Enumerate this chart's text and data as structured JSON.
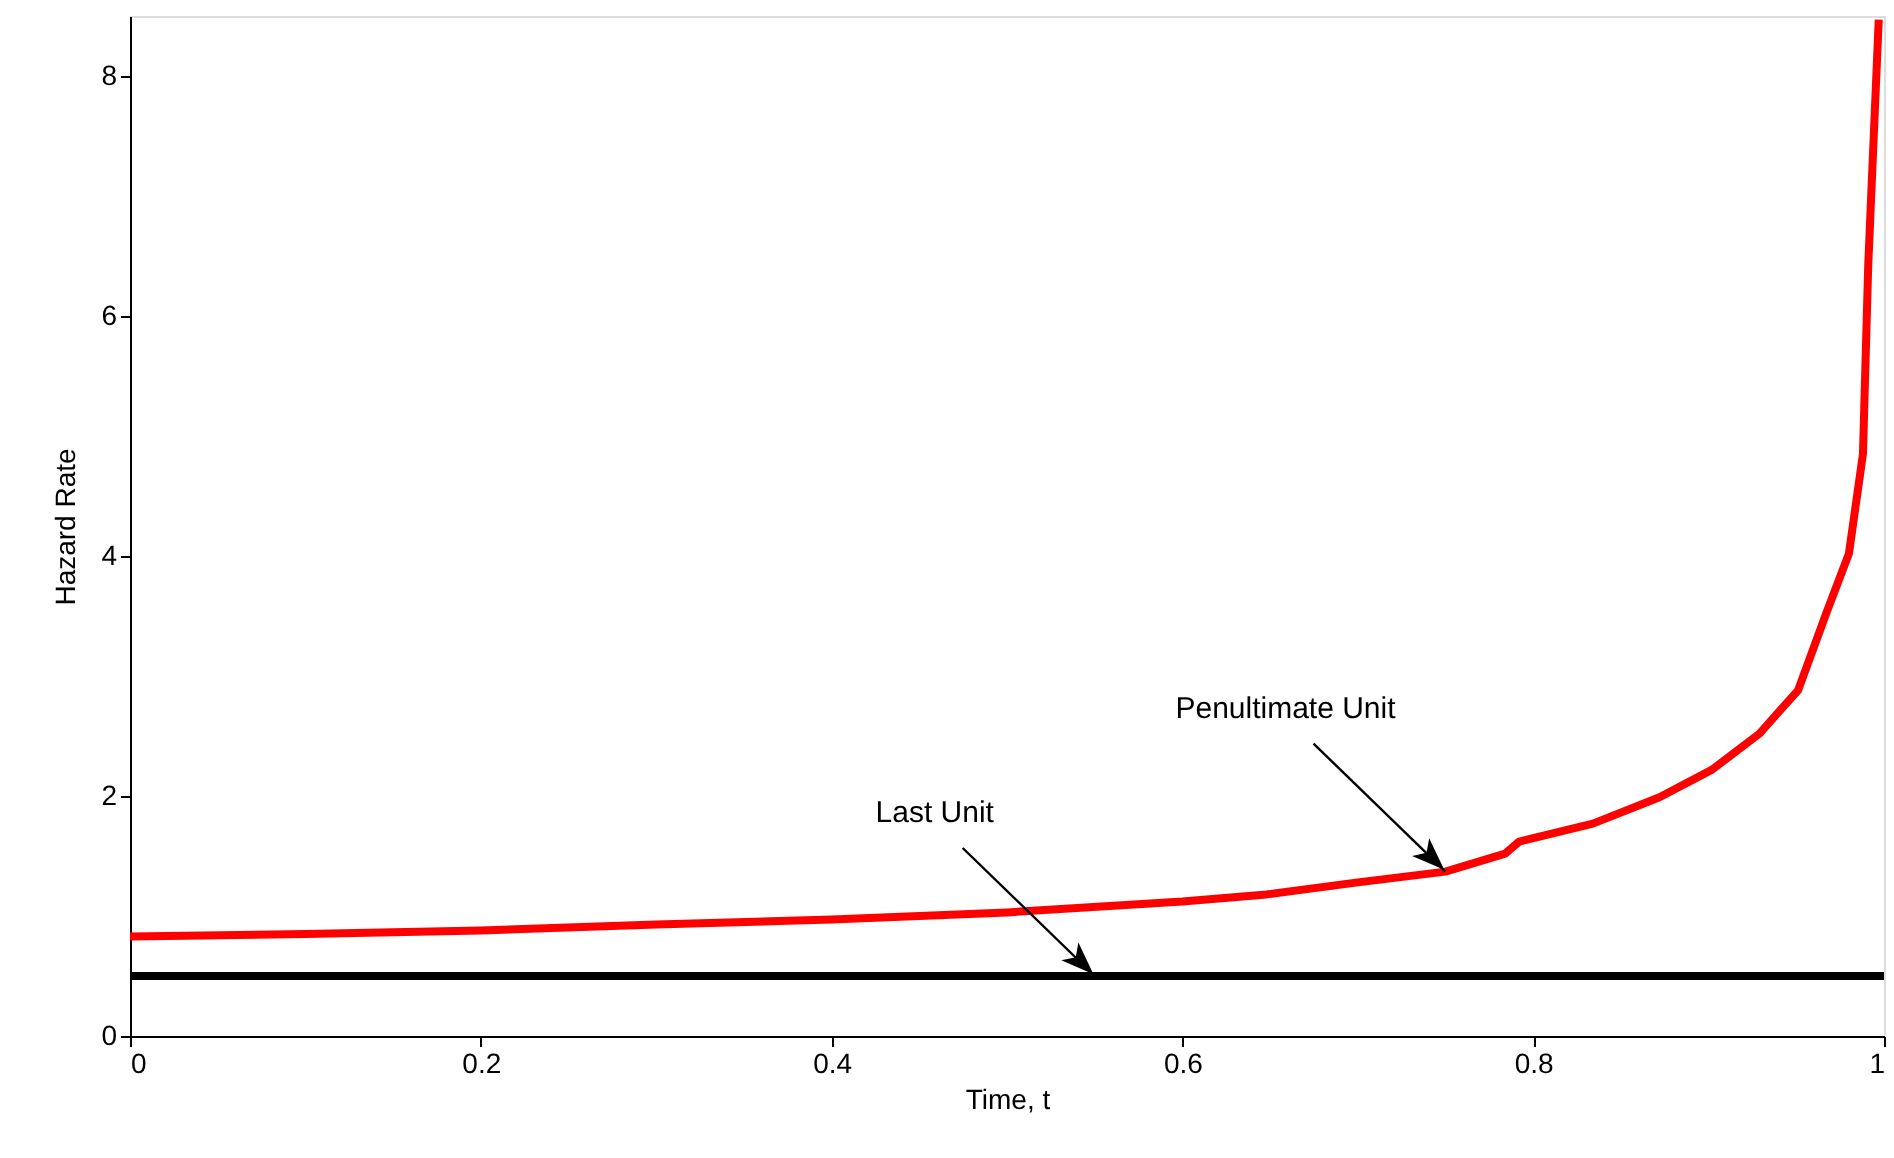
{
  "chart_data": {
    "type": "line",
    "xlabel": "Time, t",
    "ylabel": "Hazard Rate",
    "xlim": [
      0,
      1
    ],
    "ylim": [
      0,
      8.5
    ],
    "xticks": [
      0,
      0.2,
      0.4,
      0.6,
      0.8,
      1
    ],
    "yticks": [
      0,
      2,
      4,
      6,
      8
    ],
    "grid": false,
    "marker": "none",
    "line_style": "solid",
    "series": [
      {
        "color": "#ff0000",
        "x": [
          0,
          0.1,
          0.2,
          0.3,
          0.4,
          0.5,
          0.6,
          0.648,
          0.7,
          0.75,
          0.784,
          0.792,
          0.834,
          0.872,
          0.902,
          0.929,
          0.951,
          0.967,
          0.98,
          0.988,
          0.991,
          0.997
        ],
        "values": [
          0.83,
          0.85,
          0.88,
          0.93,
          0.97,
          1.03,
          1.12,
          1.18,
          1.28,
          1.37,
          1.52,
          1.62,
          1.77,
          1.99,
          2.22,
          2.52,
          2.88,
          3.52,
          4.02,
          4.85,
          6.42,
          8.47
        ]
      },
      {
        "color": "#000000",
        "x": [
          0,
          1
        ],
        "values": [
          0.5,
          0.5
        ]
      }
    ],
    "annotations": [
      {
        "text": "Penultimate Unit",
        "x": 0.75,
        "y": 1.37
      },
      {
        "text": "Last Unit",
        "x": 0.55,
        "y": 0.5
      }
    ]
  }
}
